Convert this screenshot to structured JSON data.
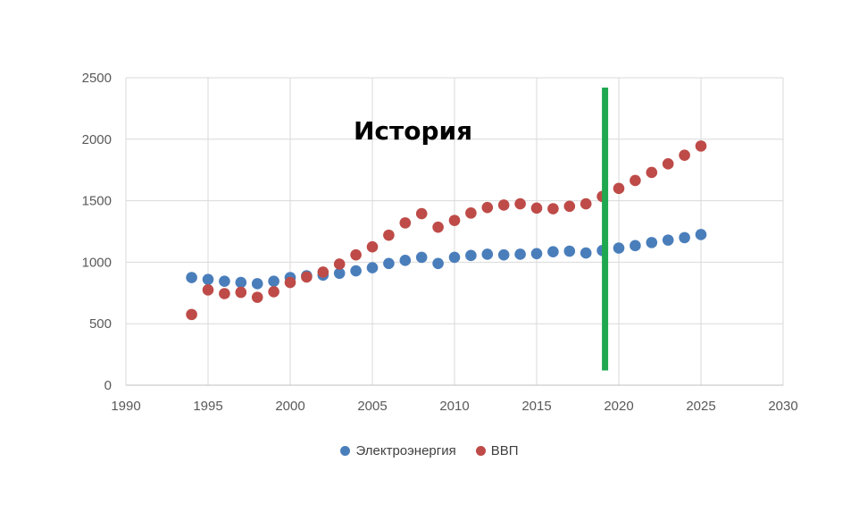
{
  "chart_data": {
    "type": "scatter",
    "title": "",
    "xlabel": "",
    "ylabel": "",
    "xlim": [
      1990,
      2030
    ],
    "ylim": [
      0,
      2500
    ],
    "xticks": [
      1990,
      1995,
      2000,
      2005,
      2010,
      2015,
      2020,
      2025,
      2030
    ],
    "yticks": [
      0,
      500,
      1000,
      1500,
      2000,
      2500
    ],
    "grid": true,
    "legend_position": "bottom",
    "annotation": "История",
    "divider": {
      "x": 2019,
      "y_range": [
        120,
        2420
      ],
      "color": "#1fa84f"
    },
    "series": [
      {
        "name": "Электроэнергия",
        "color": "#4a7ebb",
        "points": [
          [
            1994,
            875
          ],
          [
            1995,
            860
          ],
          [
            1996,
            845
          ],
          [
            1997,
            835
          ],
          [
            1998,
            825
          ],
          [
            1999,
            845
          ],
          [
            2000,
            875
          ],
          [
            2001,
            890
          ],
          [
            2002,
            895
          ],
          [
            2003,
            910
          ],
          [
            2004,
            930
          ],
          [
            2005,
            955
          ],
          [
            2006,
            990
          ],
          [
            2007,
            1015
          ],
          [
            2008,
            1040
          ],
          [
            2009,
            990
          ],
          [
            2010,
            1040
          ],
          [
            2011,
            1055
          ],
          [
            2012,
            1065
          ],
          [
            2013,
            1060
          ],
          [
            2014,
            1065
          ],
          [
            2015,
            1070
          ],
          [
            2016,
            1085
          ],
          [
            2017,
            1090
          ],
          [
            2018,
            1075
          ],
          [
            2019,
            1095
          ],
          [
            2020,
            1115
          ],
          [
            2021,
            1135
          ],
          [
            2022,
            1160
          ],
          [
            2023,
            1180
          ],
          [
            2024,
            1200
          ],
          [
            2025,
            1225
          ]
        ]
      },
      {
        "name": "ВВП",
        "color": "#be4b48",
        "points": [
          [
            1994,
            575
          ],
          [
            1995,
            775
          ],
          [
            1996,
            745
          ],
          [
            1997,
            755
          ],
          [
            1998,
            715
          ],
          [
            1999,
            760
          ],
          [
            2000,
            835
          ],
          [
            2001,
            880
          ],
          [
            2002,
            920
          ],
          [
            2003,
            985
          ],
          [
            2004,
            1060
          ],
          [
            2005,
            1125
          ],
          [
            2006,
            1220
          ],
          [
            2007,
            1320
          ],
          [
            2008,
            1395
          ],
          [
            2009,
            1285
          ],
          [
            2010,
            1340
          ],
          [
            2011,
            1400
          ],
          [
            2012,
            1445
          ],
          [
            2013,
            1465
          ],
          [
            2014,
            1475
          ],
          [
            2015,
            1440
          ],
          [
            2016,
            1435
          ],
          [
            2017,
            1455
          ],
          [
            2018,
            1475
          ],
          [
            2019,
            1535
          ],
          [
            2020,
            1600
          ],
          [
            2021,
            1665
          ],
          [
            2022,
            1730
          ],
          [
            2023,
            1800
          ],
          [
            2024,
            1870
          ],
          [
            2025,
            1945
          ]
        ]
      }
    ]
  }
}
